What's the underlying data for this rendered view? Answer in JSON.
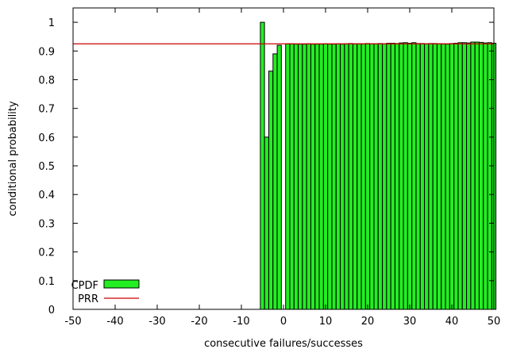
{
  "chart_data": {
    "type": "bar",
    "title": "",
    "xlabel": "consecutive failures/successes",
    "ylabel": "conditional probability",
    "xlim": [
      -50,
      50
    ],
    "ylim": [
      0,
      1.05
    ],
    "x_ticks": [
      -50,
      -40,
      -30,
      -20,
      -10,
      0,
      10,
      20,
      30,
      40,
      50
    ],
    "y_ticks": [
      0,
      0.1,
      0.2,
      0.3,
      0.4,
      0.5,
      0.6,
      0.7,
      0.8,
      0.9,
      1
    ],
    "x_tick_labels": [
      "-50",
      "-40",
      "-30",
      "-20",
      "-10",
      "0",
      "10",
      "20",
      "30",
      "40",
      "50"
    ],
    "y_tick_labels": [
      "0",
      "0.1",
      "0.2",
      "0.3",
      "0.4",
      "0.5",
      "0.6",
      "0.7",
      "0.8",
      "0.9",
      "1"
    ],
    "grid": false,
    "legend_position": "bottom-left",
    "bar_color": "#22ee22",
    "prr_color": "#cc0000",
    "series": [
      {
        "name": "CPDF",
        "kind": "bar",
        "x": [
          -5,
          -4,
          -3,
          -2,
          -1,
          1,
          2,
          3,
          4,
          5,
          6,
          7,
          8,
          9,
          10,
          11,
          12,
          13,
          14,
          15,
          16,
          17,
          18,
          19,
          20,
          21,
          22,
          23,
          24,
          25,
          26,
          27,
          28,
          29,
          30,
          31,
          32,
          33,
          34,
          35,
          36,
          37,
          38,
          39,
          40,
          41,
          42,
          43,
          44,
          45,
          46,
          47,
          48,
          49,
          50
        ],
        "values": [
          1.0,
          0.6,
          0.83,
          0.89,
          0.92,
          0.925,
          0.925,
          0.924,
          0.924,
          0.924,
          0.925,
          0.924,
          0.924,
          0.924,
          0.925,
          0.924,
          0.924,
          0.925,
          0.924,
          0.925,
          0.926,
          0.925,
          0.925,
          0.925,
          0.926,
          0.925,
          0.925,
          0.926,
          0.925,
          0.927,
          0.927,
          0.926,
          0.928,
          0.929,
          0.927,
          0.929,
          0.926,
          0.926,
          0.925,
          0.926,
          0.926,
          0.925,
          0.925,
          0.924,
          0.926,
          0.927,
          0.929,
          0.929,
          0.928,
          0.931,
          0.931,
          0.93,
          0.928,
          0.929,
          0.927
        ]
      },
      {
        "name": "PRR",
        "kind": "line",
        "value": 0.925
      }
    ]
  }
}
